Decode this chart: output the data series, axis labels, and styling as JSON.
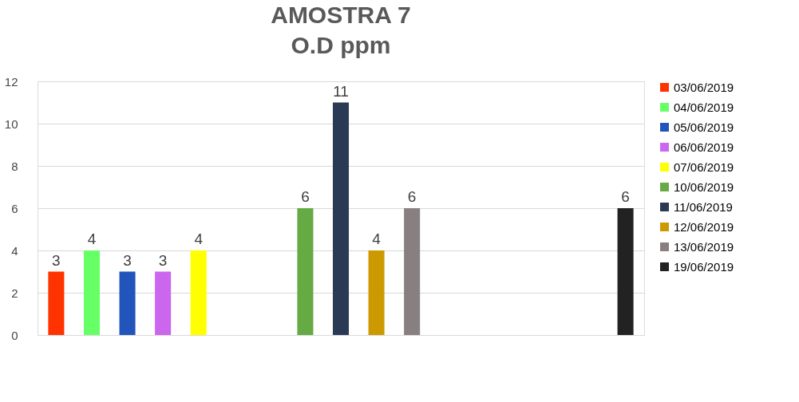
{
  "chart_data": {
    "type": "bar",
    "title": "AMOSTRA 7",
    "subtitle": "O.D ppm",
    "categories": [
      null,
      null,
      null,
      null,
      null,
      null,
      null,
      null,
      null,
      null,
      null,
      null,
      null,
      null,
      null,
      null,
      null
    ],
    "series": [
      {
        "name": "03/06/2019",
        "color": "#ff3300",
        "values": [
          3,
          null,
          null,
          null,
          null,
          null,
          null,
          null,
          null,
          null,
          null,
          null,
          null,
          null,
          null,
          null,
          null
        ]
      },
      {
        "name": "04/06/2019",
        "color": "#66ff66",
        "values": [
          null,
          4,
          null,
          null,
          null,
          null,
          null,
          null,
          null,
          null,
          null,
          null,
          null,
          null,
          null,
          null,
          null
        ]
      },
      {
        "name": "05/06/2019",
        "color": "#2255bb",
        "values": [
          null,
          null,
          3,
          null,
          null,
          null,
          null,
          null,
          null,
          null,
          null,
          null,
          null,
          null,
          null,
          null,
          null
        ]
      },
      {
        "name": "06/06/2019",
        "color": "#cc66ee",
        "values": [
          null,
          null,
          null,
          3,
          null,
          null,
          null,
          null,
          null,
          null,
          null,
          null,
          null,
          null,
          null,
          null,
          null
        ]
      },
      {
        "name": "07/06/2019",
        "color": "#ffff00",
        "values": [
          null,
          null,
          null,
          null,
          4,
          null,
          null,
          null,
          null,
          null,
          null,
          null,
          null,
          null,
          null,
          null,
          null
        ]
      },
      {
        "name": "10/06/2019",
        "color": "#66aa44",
        "values": [
          null,
          null,
          null,
          null,
          null,
          null,
          null,
          6,
          null,
          null,
          null,
          null,
          null,
          null,
          null,
          null,
          null
        ]
      },
      {
        "name": "11/06/2019",
        "color": "#2a3a55",
        "values": [
          null,
          null,
          null,
          null,
          null,
          null,
          null,
          null,
          11,
          null,
          null,
          null,
          null,
          null,
          null,
          null,
          null
        ]
      },
      {
        "name": "12/06/2019",
        "color": "#cc9900",
        "values": [
          null,
          null,
          null,
          null,
          null,
          null,
          null,
          null,
          null,
          4,
          null,
          null,
          null,
          null,
          null,
          null,
          null
        ]
      },
      {
        "name": "13/06/2019",
        "color": "#888080",
        "values": [
          null,
          null,
          null,
          null,
          null,
          null,
          null,
          null,
          null,
          null,
          6,
          null,
          null,
          null,
          null,
          null,
          null
        ]
      },
      {
        "name": "19/06/2019",
        "color": "#222222",
        "values": [
          null,
          null,
          null,
          null,
          null,
          null,
          null,
          null,
          null,
          null,
          null,
          null,
          null,
          null,
          null,
          null,
          6
        ]
      }
    ],
    "ylim": [
      0,
      12
    ],
    "yticks": [
      0,
      2,
      4,
      6,
      8,
      10,
      12
    ],
    "grid": "y",
    "legend": "right",
    "data_labels": true
  }
}
